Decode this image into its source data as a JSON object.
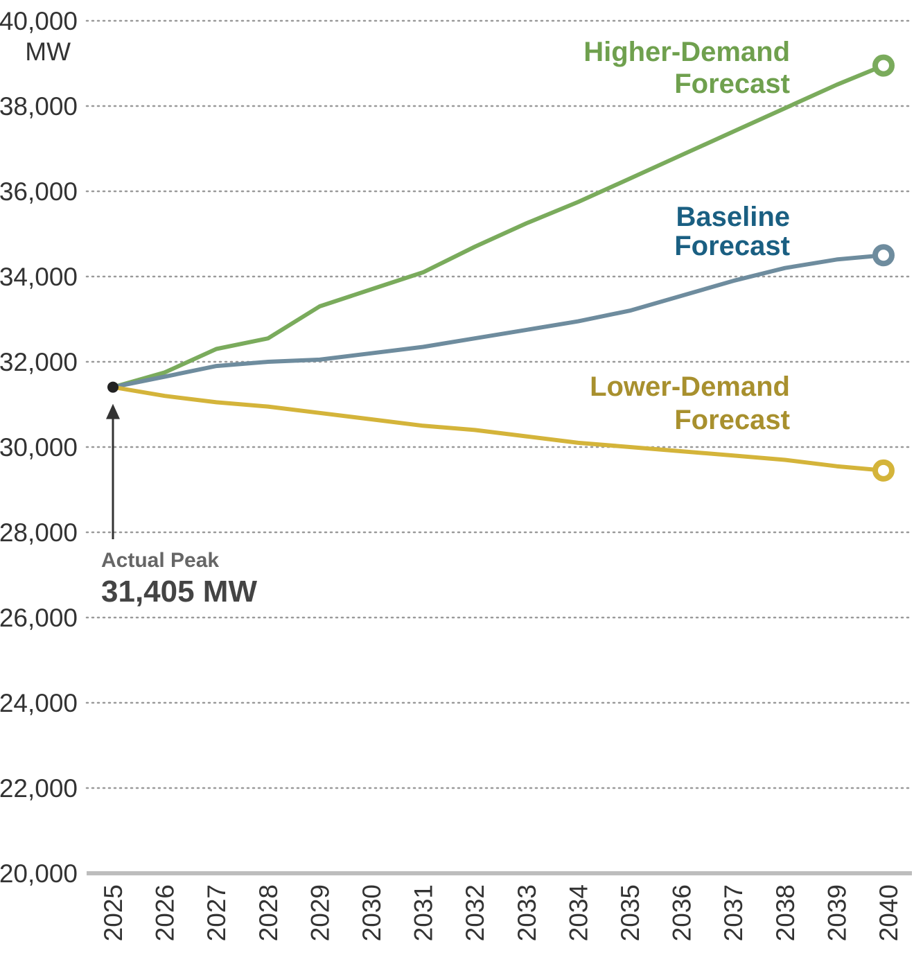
{
  "chart_data": {
    "type": "line",
    "title": "",
    "xlabel": "",
    "ylabel": "",
    "y_unit": "MW",
    "ylim": [
      20000,
      40000
    ],
    "y_ticks": [
      "20,000",
      "22,000",
      "24,000",
      "26,000",
      "28,000",
      "30,000",
      "32,000",
      "34,000",
      "36,000",
      "38,000",
      "40,000"
    ],
    "y_tick_values": [
      20000,
      22000,
      24000,
      26000,
      28000,
      30000,
      32000,
      34000,
      36000,
      38000,
      40000
    ],
    "categories": [
      "2025",
      "2026",
      "2027",
      "2028",
      "2029",
      "2030",
      "2031",
      "2032",
      "2033",
      "2034",
      "2035",
      "2036",
      "2037",
      "2038",
      "2039",
      "2040"
    ],
    "grid": true,
    "series": [
      {
        "name": "Higher-Demand Forecast",
        "label_lines": [
          "Higher-Demand",
          "Forecast"
        ],
        "color": "#7aab5c",
        "label_color": "#6fa04e",
        "values": [
          31405,
          31750,
          32300,
          32550,
          33300,
          33700,
          34100,
          34700,
          35250,
          35750,
          36300,
          36850,
          37400,
          37950,
          38500,
          38950
        ]
      },
      {
        "name": "Baseline Forecast",
        "label_lines": [
          "Baseline",
          "Forecast"
        ],
        "color": "#6e8c9e",
        "label_color": "#1a5f82",
        "values": [
          31405,
          31650,
          31900,
          32000,
          32050,
          32200,
          32350,
          32550,
          32750,
          32950,
          33200,
          33550,
          33900,
          34200,
          34400,
          34500
        ]
      },
      {
        "name": "Lower-Demand Forecast",
        "label_lines": [
          "Lower-Demand",
          "Forecast"
        ],
        "color": "#d4b43a",
        "label_color": "#a8902e",
        "values": [
          31405,
          31200,
          31050,
          30950,
          30800,
          30650,
          30500,
          30400,
          30250,
          30100,
          30000,
          29900,
          29800,
          29700,
          29550,
          29450
        ]
      }
    ],
    "annotation": {
      "line1": "Actual Peak",
      "line2": "31,405 MW",
      "x": "2025",
      "value": 31405
    }
  }
}
